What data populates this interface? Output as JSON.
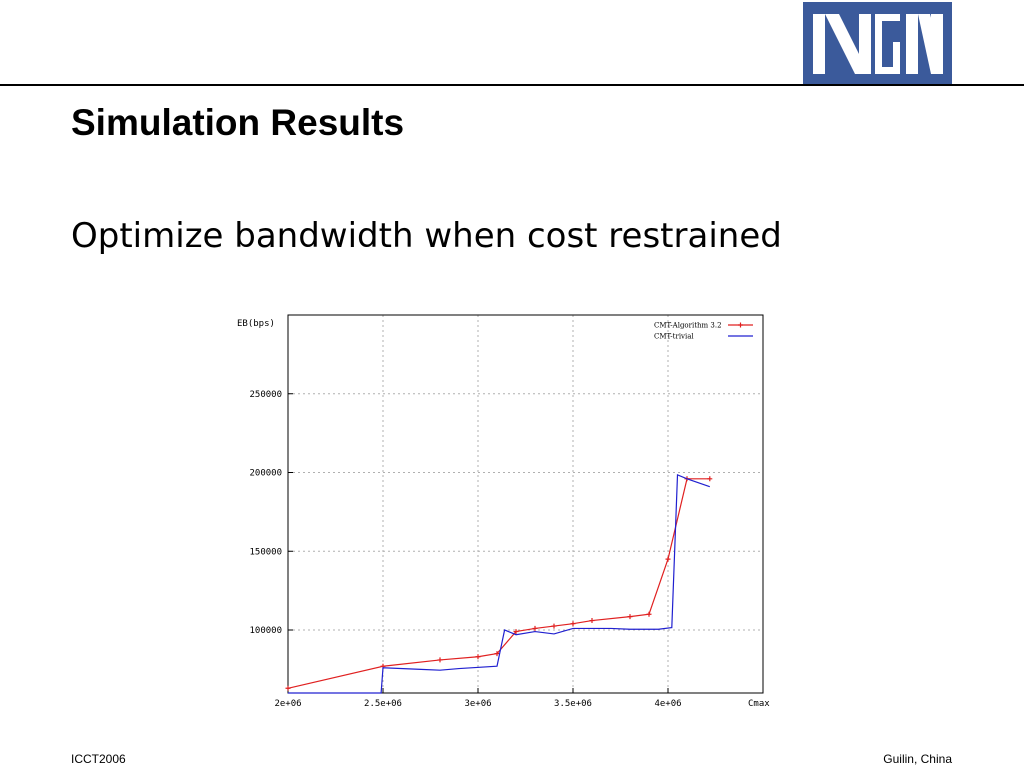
{
  "slide": {
    "title": "Simulation Results",
    "subtitle": "Optimize bandwidth when cost restrained",
    "footer_left": "ICCT2006",
    "footer_right": "Guilin, China",
    "logo_color": "#3b5a9b"
  },
  "chart_data": {
    "type": "line",
    "ylabel": "EB(bps)",
    "xlabel": "Cmax",
    "xlim": [
      2000000,
      4500000
    ],
    "ylim": [
      60000,
      300000
    ],
    "xticks": [
      2000000,
      2500000,
      3000000,
      3500000,
      4000000
    ],
    "xtick_labels": [
      "2e+06",
      "2.5e+06",
      "3e+06",
      "3.5e+06",
      "4e+06"
    ],
    "yticks": [
      100000,
      150000,
      200000,
      250000
    ],
    "ytick_labels": [
      "100000",
      "150000",
      "200000",
      "250000"
    ],
    "grid": true,
    "legend_position": "top-right",
    "series": [
      {
        "name": "CMT-Algorithm 3.2",
        "color": "#e02020",
        "marker": "plus",
        "x": [
          2000000,
          2500000,
          2800000,
          3000000,
          3100000,
          3200000,
          3300000,
          3400000,
          3500000,
          3600000,
          3800000,
          3900000,
          4000000,
          4100000,
          4220000
        ],
        "y": [
          63000,
          77000,
          81000,
          83000,
          85000,
          99000,
          101000,
          102500,
          104000,
          106000,
          108500,
          110000,
          145000,
          196000,
          196000
        ]
      },
      {
        "name": "CMT-trivial",
        "color": "#2020d0",
        "marker": "none",
        "x": [
          2000000,
          2490000,
          2500000,
          2700000,
          2800000,
          2900000,
          3100000,
          3140000,
          3200000,
          3300000,
          3400000,
          3500000,
          3700000,
          3800000,
          3950000,
          4020000,
          4050000,
          4100000,
          4220000
        ],
        "y": [
          60000,
          60000,
          76000,
          75000,
          74500,
          75500,
          77000,
          100000,
          97000,
          99000,
          97500,
          101000,
          101000,
          100500,
          100500,
          101500,
          198500,
          196000,
          191000
        ]
      }
    ]
  }
}
